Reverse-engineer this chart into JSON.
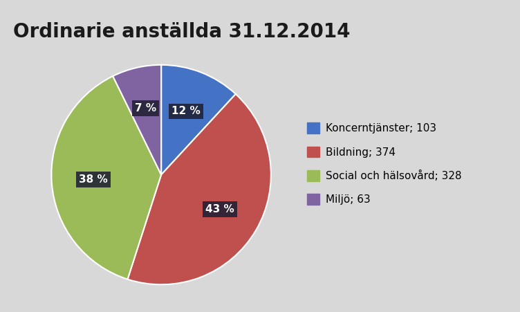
{
  "title": "Ordinarie anställda 31.12.2014",
  "slices": [
    103,
    374,
    328,
    63
  ],
  "labels": [
    "Koncerntjänster; 103",
    "Bildning; 374",
    "Social och hälsovård; 328",
    "Miljö; 63"
  ],
  "colors": [
    "#4472C4",
    "#C0504D",
    "#9BBB59",
    "#8064A2"
  ],
  "pct_labels": [
    "12 %",
    "43 %",
    "38 %",
    "7 %"
  ],
  "startangle": 90,
  "background_color": "#D8D8D8",
  "title_fontsize": 20,
  "label_fontsize": 11,
  "legend_fontsize": 11
}
